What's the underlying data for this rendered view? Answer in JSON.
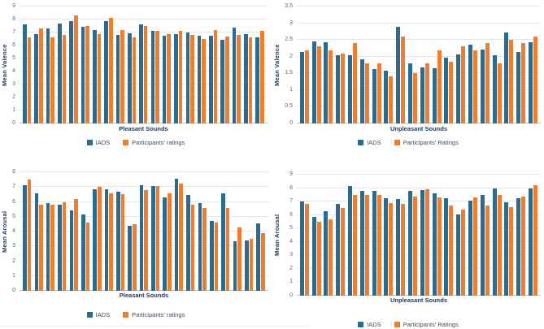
{
  "colors": {
    "iads": "#2c6a8e",
    "participants": "#ed7d31",
    "gridline": "#dde6f1",
    "baseline": "#b3c6d9",
    "axis_title": "#1f3b63",
    "tick_label": "#5b6774"
  },
  "chart_data": [
    {
      "type": "bar",
      "title": "",
      "xlabel": "Pleasant Sounds",
      "ylabel": "Mean Valence",
      "ylim": [
        0,
        9
      ],
      "ytick_step": 1,
      "grid": true,
      "legend_position": "bottom",
      "series": [
        {
          "name": "IADS",
          "values": [
            7.65,
            6.9,
            7.3,
            7.7,
            7.9,
            7.45,
            7.2,
            7.9,
            6.8,
            6.95,
            7.65,
            7.15,
            6.75,
            6.9,
            7.0,
            6.75,
            6.75,
            6.45,
            7.4,
            6.9,
            6.6
          ]
        },
        {
          "name": "Participants' ratings",
          "values": [
            6.65,
            7.3,
            6.6,
            6.8,
            8.3,
            7.5,
            6.9,
            8.1,
            7.2,
            6.6,
            7.5,
            7.15,
            6.9,
            7.1,
            6.8,
            6.5,
            7.2,
            6.7,
            6.8,
            6.65,
            7.1
          ]
        }
      ]
    },
    {
      "type": "bar",
      "title": "",
      "xlabel": "Unpleasant Sounds",
      "ylabel": "Mean Valence",
      "ylim": [
        0,
        3.5
      ],
      "ytick_step": 0.5,
      "grid": true,
      "legend_position": "bottom",
      "series": [
        {
          "name": "IADS",
          "values": [
            2.15,
            2.45,
            2.43,
            2.03,
            2.05,
            1.93,
            1.63,
            1.57,
            2.9,
            1.8,
            1.67,
            1.65,
            1.98,
            2.06,
            2.35,
            2.22,
            2.04,
            2.73,
            2.13,
            2.42
          ]
        },
        {
          "name": "Participants' Ratings",
          "values": [
            2.2,
            2.3,
            2.2,
            2.1,
            2.4,
            1.8,
            1.8,
            1.4,
            2.6,
            1.5,
            1.8,
            2.2,
            1.85,
            2.3,
            2.2,
            2.4,
            1.8,
            2.5,
            2.4,
            2.6
          ]
        }
      ]
    },
    {
      "type": "bar",
      "title": "",
      "xlabel": "Pleasant Sounds",
      "ylabel": "Mean Arousal",
      "ylim": [
        0,
        8
      ],
      "ytick_step": 1,
      "grid": true,
      "legend_position": "bottom",
      "series": [
        {
          "name": "IADS",
          "values": [
            7.1,
            6.55,
            5.9,
            5.8,
            5.45,
            5.15,
            6.85,
            6.85,
            6.7,
            4.4,
            7.1,
            7.05,
            6.3,
            7.55,
            6.45,
            5.9,
            4.7,
            6.55,
            3.35,
            3.4,
            4.55
          ]
        },
        {
          "name": "Participants' ratings",
          "values": [
            7.5,
            5.8,
            5.8,
            6.0,
            6.2,
            4.6,
            7.0,
            6.6,
            6.5,
            4.5,
            6.8,
            7.05,
            6.6,
            7.25,
            5.8,
            5.6,
            4.6,
            5.6,
            4.3,
            3.5,
            3.9
          ]
        }
      ]
    },
    {
      "type": "bar",
      "title": "",
      "xlabel": "Unpleasant Sounds",
      "ylabel": "Mean Arousal",
      "ylim": [
        0,
        9
      ],
      "ytick_step": 1,
      "grid": true,
      "legend_position": "bottom",
      "series": [
        {
          "name": "IADS",
          "values": [
            7.0,
            5.85,
            6.3,
            6.85,
            8.15,
            7.8,
            7.8,
            7.25,
            7.2,
            7.8,
            7.85,
            7.6,
            7.25,
            6.05,
            7.05,
            7.5,
            8.0,
            6.95,
            7.25,
            8.0
          ]
        },
        {
          "name": "Participants' Ratings",
          "values": [
            6.8,
            5.5,
            5.7,
            6.5,
            7.5,
            7.5,
            7.5,
            6.9,
            6.8,
            7.4,
            7.9,
            7.3,
            6.7,
            6.4,
            7.3,
            6.7,
            7.5,
            6.6,
            7.4,
            8.2
          ]
        }
      ]
    }
  ]
}
